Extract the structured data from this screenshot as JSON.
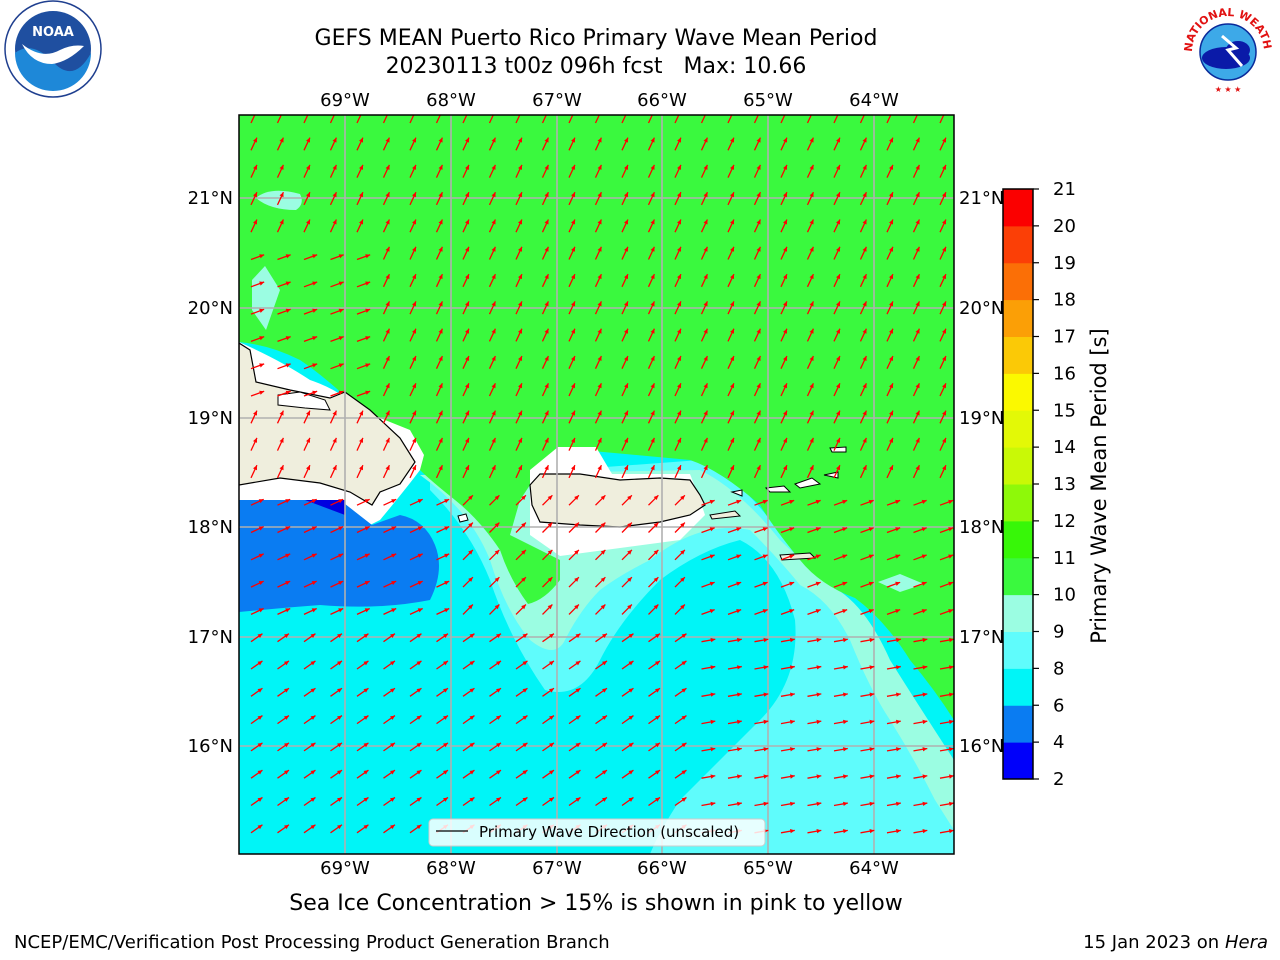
{
  "title": {
    "line1": "GEFS MEAN Puerto Rico Primary Wave Mean Period",
    "run": "20230113 t00z 096h fcst",
    "max_label": "Max: 10.66"
  },
  "map": {
    "lon_labels": [
      "69°W",
      "68°W",
      "67°W",
      "66°W",
      "65°W",
      "64°W"
    ],
    "lat_labels": [
      "21°N",
      "20°N",
      "19°N",
      "18°N",
      "17°N",
      "16°N"
    ],
    "legend_label": "Primary Wave Direction (unscaled)",
    "colors": {
      "land": "#efeedd",
      "period_4_6": "#0a7cf2",
      "period_6_8": "#00f5f7",
      "period_8_9": "#5ffcfc",
      "period_9_10": "#9bfde2",
      "period_10_11": "#3af93e",
      "arrow": "#ff0000"
    }
  },
  "colorbar": {
    "label": "Primary Wave Mean Period [s]",
    "ticks": [
      "2",
      "4",
      "6",
      "8",
      "9",
      "10",
      "11",
      "12",
      "13",
      "14",
      "15",
      "16",
      "17",
      "18",
      "19",
      "20",
      "21"
    ],
    "colors": [
      "#0000fa",
      "#0a7cf2",
      "#00f5f7",
      "#5ffcfc",
      "#9bfde2",
      "#3af93e",
      "#37f708",
      "#8ef909",
      "#c9f906",
      "#e3f906",
      "#fbf900",
      "#fbc906",
      "#fb9f06",
      "#fb6f06",
      "#fb3f06",
      "#fb0000"
    ]
  },
  "caption": "Sea Ice Concentration > 15% is shown in pink to yellow",
  "footer": {
    "left": "NCEP/EMC/Verification Post Processing Product Generation Branch",
    "date": "15 Jan 2023 on",
    "host": "Hera"
  },
  "logos": {
    "noaa_text": "NOAA",
    "nws_text": "NATIONAL WEATHER SERVICE"
  }
}
